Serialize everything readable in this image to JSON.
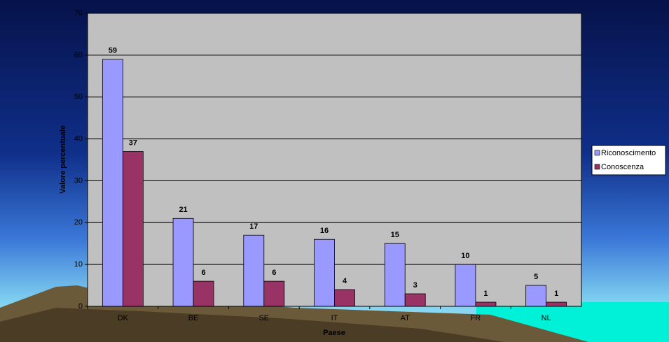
{
  "chart_data": {
    "type": "bar",
    "categories": [
      "DK",
      "BE",
      "SE",
      "IT",
      "AT",
      "FR",
      "NL"
    ],
    "series": [
      {
        "name": "Riconoscimento",
        "color": "#9999ff",
        "values": [
          59,
          21,
          17,
          16,
          15,
          10,
          5
        ]
      },
      {
        "name": "Conoscenza",
        "color": "#993366",
        "values": [
          37,
          6,
          6,
          4,
          3,
          1,
          1
        ]
      }
    ],
    "xlabel": "Paese",
    "ylabel": "Valore percentuale",
    "ylim": [
      0,
      70
    ],
    "yticks": [
      0,
      10,
      20,
      30,
      40,
      50,
      60,
      70
    ],
    "grid": true,
    "legend": "right",
    "data_labels": true
  }
}
